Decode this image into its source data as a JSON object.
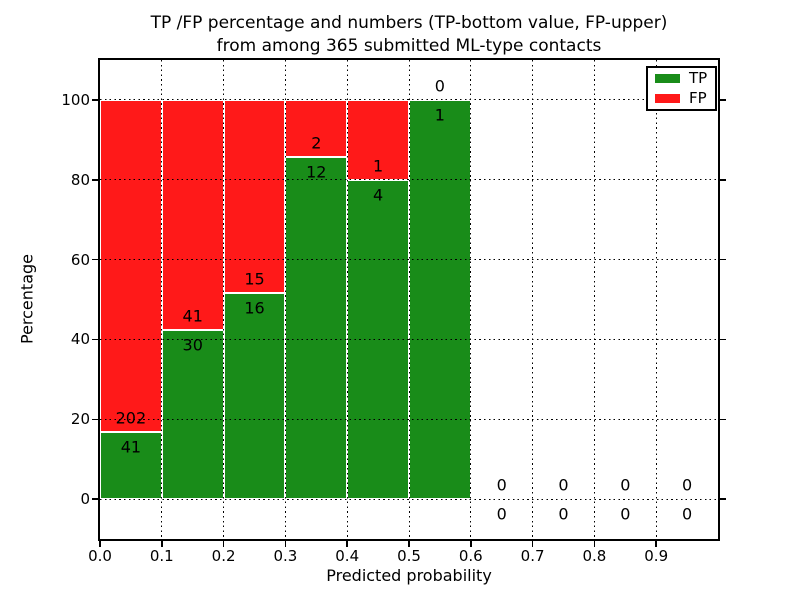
{
  "chart_data": {
    "type": "bar",
    "stacked": true,
    "title_line1": "TP /FP percentage and numbers (TP-bottom value, FP-upper)",
    "title_line2": "from among 365 submitted ML-type contacts",
    "total_contacts": 365,
    "xlabel": "Predicted probability",
    "ylabel": "Percentage",
    "xlim": [
      0.0,
      1.0
    ],
    "ylim": [
      -10,
      110
    ],
    "grid": true,
    "xticks": [
      0.0,
      0.1,
      0.2,
      0.3,
      0.4,
      0.5,
      0.6,
      0.7,
      0.8,
      0.9
    ],
    "xtick_labels": [
      "0.0",
      "0.1",
      "0.2",
      "0.3",
      "0.4",
      "0.5",
      "0.6",
      "0.7",
      "0.8",
      "0.9"
    ],
    "yticks": [
      0,
      20,
      40,
      60,
      80,
      100
    ],
    "ytick_labels": [
      "0",
      "20",
      "40",
      "60",
      "80",
      "100"
    ],
    "colors": {
      "tp": "#198c19",
      "fp": "#ff1919",
      "bar_edge": "#ffffff",
      "grid": "#000000",
      "frame": "#000000",
      "text": "#000000",
      "background": "#ffffff"
    },
    "legend": {
      "position": "upper right",
      "entries": [
        {
          "label": "TP",
          "color": "#198c19"
        },
        {
          "label": "FP",
          "color": "#ff1919"
        }
      ]
    },
    "bins": [
      {
        "range": [
          0.0,
          0.1
        ],
        "tp": 41,
        "fp": 202,
        "tp_pct": 16.87,
        "fp_pct": 83.13
      },
      {
        "range": [
          0.1,
          0.2
        ],
        "tp": 30,
        "fp": 41,
        "tp_pct": 42.25,
        "fp_pct": 57.75
      },
      {
        "range": [
          0.2,
          0.3
        ],
        "tp": 16,
        "fp": 15,
        "tp_pct": 51.61,
        "fp_pct": 48.39
      },
      {
        "range": [
          0.3,
          0.4
        ],
        "tp": 12,
        "fp": 2,
        "tp_pct": 85.71,
        "fp_pct": 14.29
      },
      {
        "range": [
          0.4,
          0.5
        ],
        "tp": 4,
        "fp": 1,
        "tp_pct": 80.0,
        "fp_pct": 20.0
      },
      {
        "range": [
          0.5,
          0.6
        ],
        "tp": 1,
        "fp": 0,
        "tp_pct": 100.0,
        "fp_pct": 0.0
      },
      {
        "range": [
          0.6,
          0.7
        ],
        "tp": 0,
        "fp": 0,
        "tp_pct": 0.0,
        "fp_pct": 0.0
      },
      {
        "range": [
          0.7,
          0.8
        ],
        "tp": 0,
        "fp": 0,
        "tp_pct": 0.0,
        "fp_pct": 0.0
      },
      {
        "range": [
          0.8,
          0.9
        ],
        "tp": 0,
        "fp": 0,
        "tp_pct": 0.0,
        "fp_pct": 0.0
      },
      {
        "range": [
          0.9,
          1.0
        ],
        "tp": 0,
        "fp": 0,
        "tp_pct": 0.0,
        "fp_pct": 0.0
      }
    ]
  }
}
